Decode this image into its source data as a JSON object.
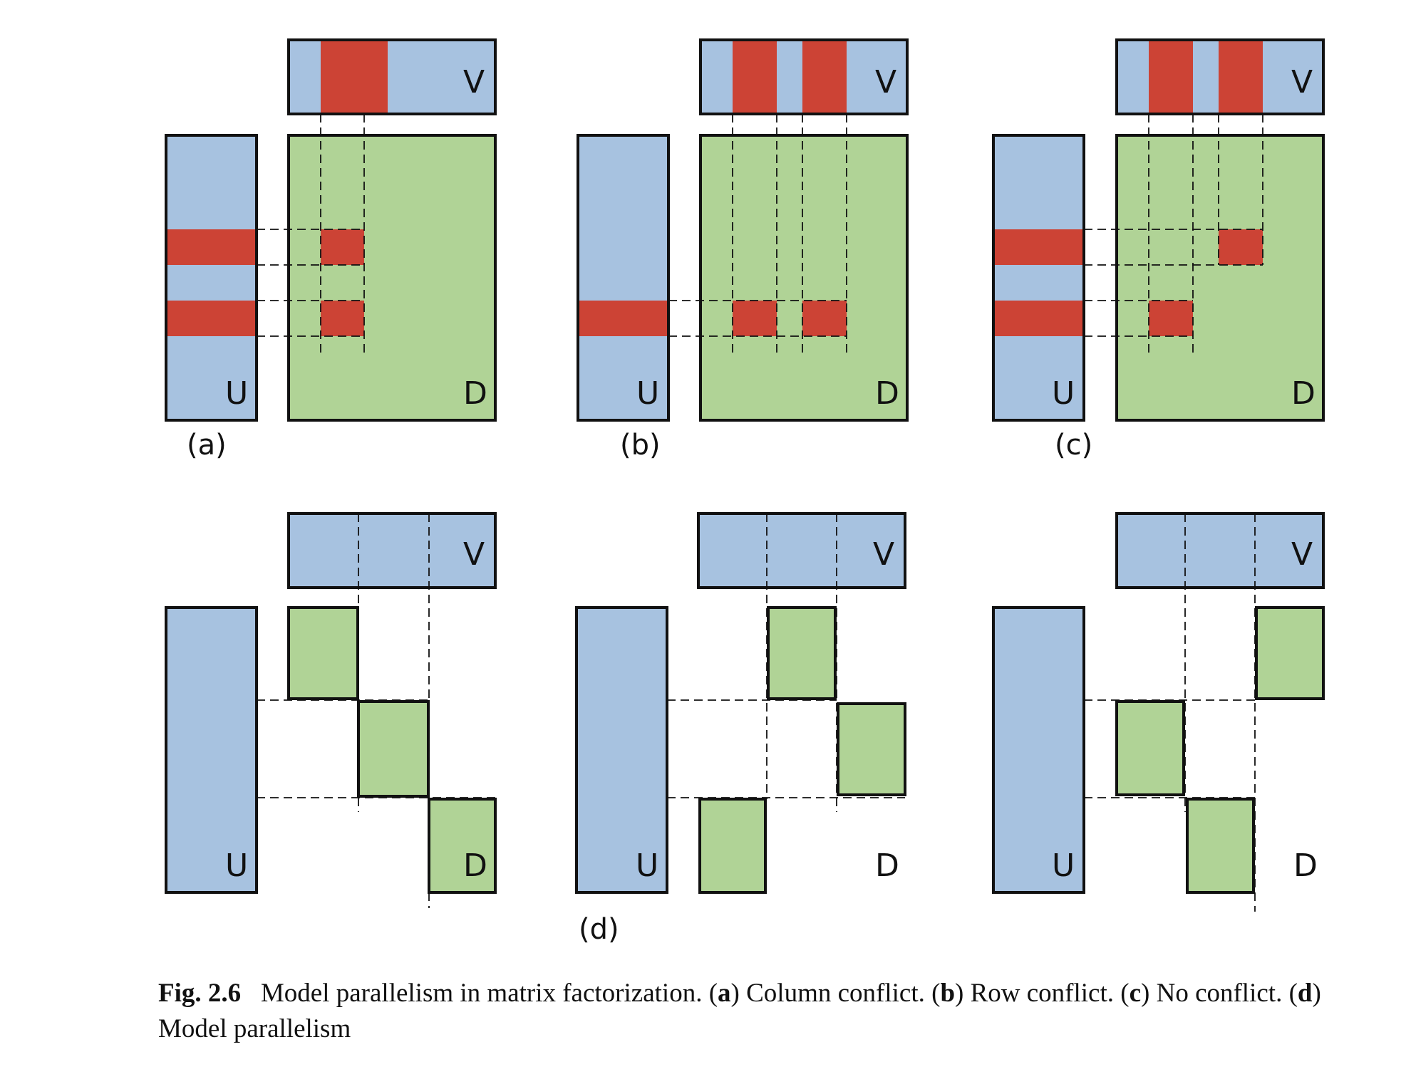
{
  "colors": {
    "blue": "#a7c2e0",
    "red": "#cc4335",
    "green": "#b0d396",
    "stroke": "#111111"
  },
  "matrix_labels": {
    "u": "U",
    "v": "V",
    "d": "D"
  },
  "panels": [
    {
      "id": "a",
      "label": "(a)"
    },
    {
      "id": "b",
      "label": "(b)"
    },
    {
      "id": "c",
      "label": "(c)"
    },
    {
      "id": "d",
      "label": "(d)"
    }
  ],
  "caption": {
    "fig": "Fig. 2.6",
    "title": "Model parallelism in matrix factorization.",
    "parts": [
      {
        "open": "(",
        "key": "a",
        "close": ")",
        "text": " Column conflict."
      },
      {
        "open": "(",
        "key": "b",
        "close": ")",
        "text": " Row conflict."
      },
      {
        "open": "(",
        "key": "c",
        "close": ")",
        "text": " No conflict."
      },
      {
        "open": "(",
        "key": "d",
        "close": ")",
        "text": " Model parallelism"
      }
    ]
  }
}
